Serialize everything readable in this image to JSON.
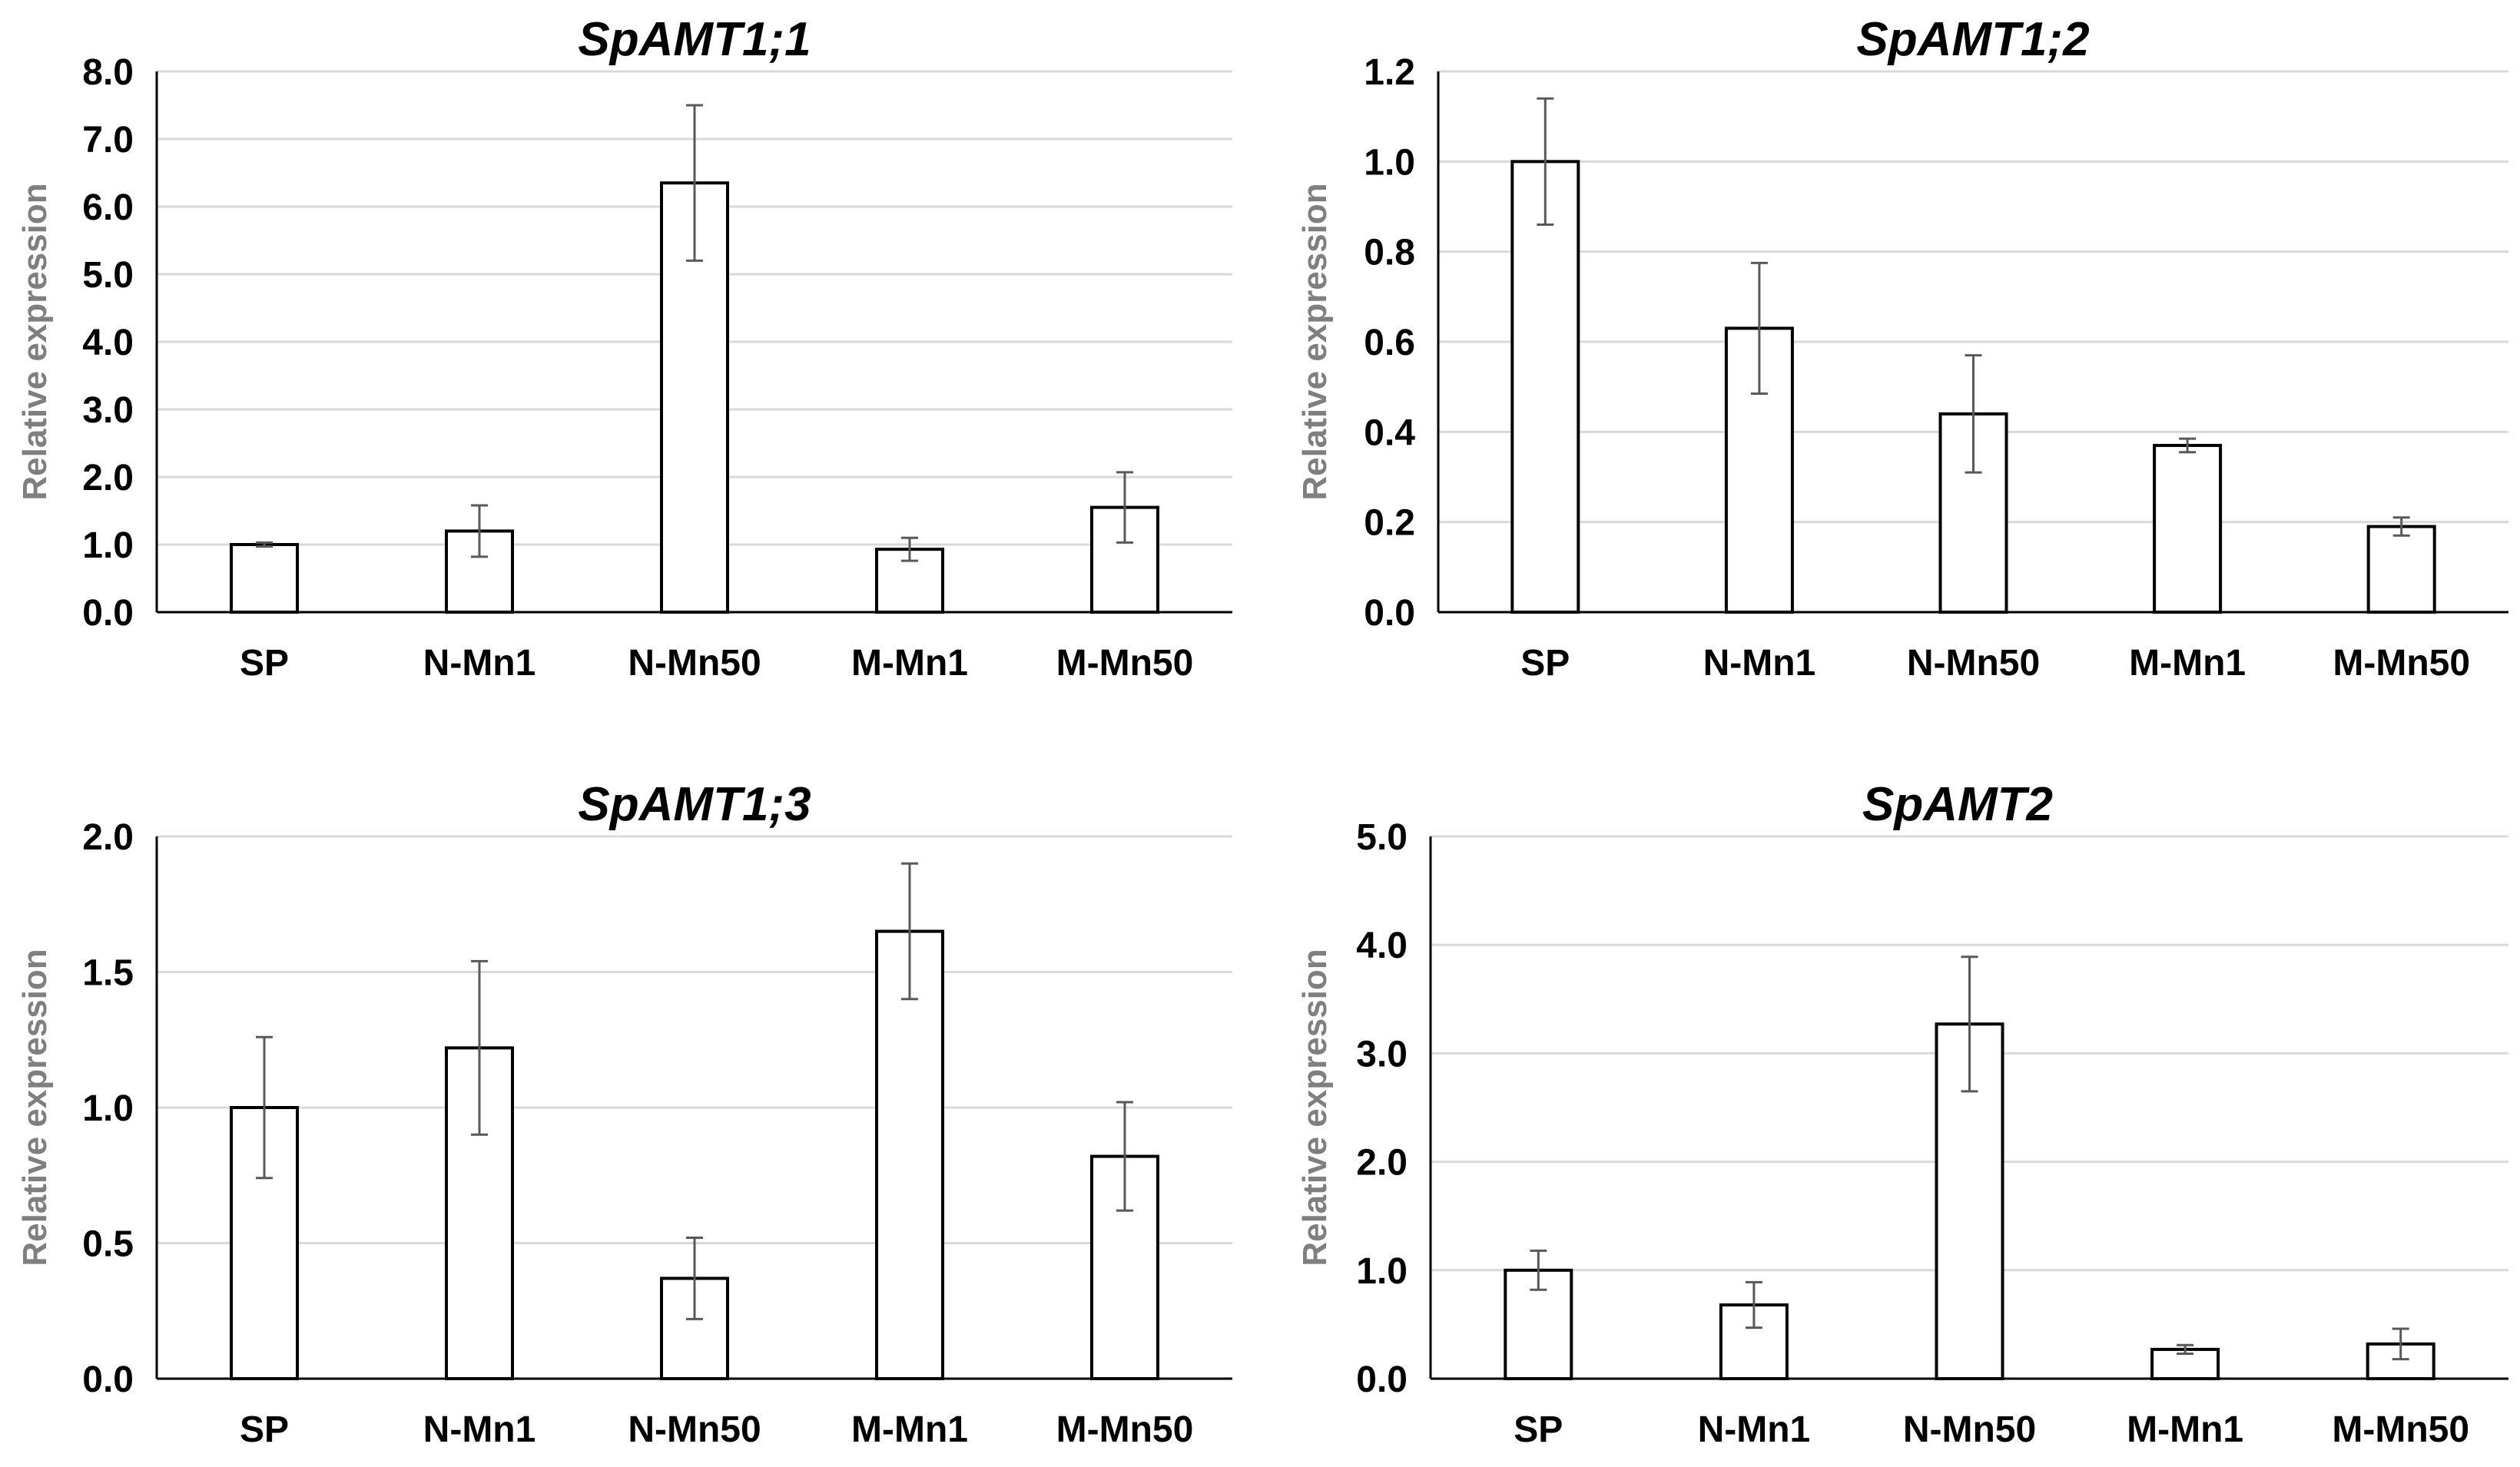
{
  "figure": {
    "style": {
      "bar_fill": "#ffffff",
      "bar_stroke": "#000000",
      "grid_color": "#d9d9d9",
      "axis_color": "#000000",
      "error_bar_color": "#595959",
      "ylabel_color": "#7f7f7f"
    }
  },
  "chart_data": [
    {
      "type": "bar",
      "title": "SpAMT1;1",
      "xlabel": "",
      "ylabel": "Relative expression",
      "categories": [
        "SP",
        "N-Mn1",
        "N-Mn50",
        "M-Mn1",
        "M-Mn50"
      ],
      "values": [
        1.0,
        1.2,
        6.35,
        0.93,
        1.55
      ],
      "errors": [
        0.03,
        0.38,
        1.15,
        0.17,
        0.52
      ],
      "ylim": [
        0,
        8
      ],
      "yticks": [
        "0.0",
        "1.0",
        "2.0",
        "3.0",
        "4.0",
        "5.0",
        "6.0",
        "7.0",
        "8.0"
      ],
      "grid": true,
      "legend": "none"
    },
    {
      "type": "bar",
      "title": "SpAMT1;2",
      "xlabel": "",
      "ylabel": "Relative expression",
      "categories": [
        "SP",
        "N-Mn1",
        "N-Mn50",
        "M-Mn1",
        "M-Mn50"
      ],
      "values": [
        1.0,
        0.63,
        0.44,
        0.37,
        0.19
      ],
      "errors": [
        0.14,
        0.145,
        0.13,
        0.015,
        0.02
      ],
      "ylim": [
        0,
        1.2
      ],
      "yticks": [
        "0.0",
        "0.2",
        "0.4",
        "0.6",
        "0.8",
        "1.0",
        "1.2"
      ],
      "grid": true,
      "legend": "none"
    },
    {
      "type": "bar",
      "title": "SpAMT1;3",
      "xlabel": "",
      "ylabel": "Relative expression",
      "categories": [
        "SP",
        "N-Mn1",
        "N-Mn50",
        "M-Mn1",
        "M-Mn50"
      ],
      "values": [
        1.0,
        1.22,
        0.37,
        1.65,
        0.82
      ],
      "errors": [
        0.26,
        0.32,
        0.15,
        0.25,
        0.2
      ],
      "ylim": [
        0,
        2.0
      ],
      "yticks": [
        "0.0",
        "0.5",
        "1.0",
        "1.5",
        "2.0"
      ],
      "grid": true,
      "legend": "none"
    },
    {
      "type": "bar",
      "title": "SpAMT2",
      "xlabel": "",
      "ylabel": "Relative expression",
      "categories": [
        "SP",
        "N-Mn1",
        "N-Mn50",
        "M-Mn1",
        "M-Mn50"
      ],
      "values": [
        1.0,
        0.68,
        3.27,
        0.27,
        0.32
      ],
      "errors": [
        0.18,
        0.21,
        0.62,
        0.04,
        0.14
      ],
      "ylim": [
        0,
        5.0
      ],
      "yticks": [
        "0.0",
        "1.0",
        "2.0",
        "3.0",
        "4.0",
        "5.0"
      ],
      "grid": true,
      "legend": "none"
    }
  ]
}
